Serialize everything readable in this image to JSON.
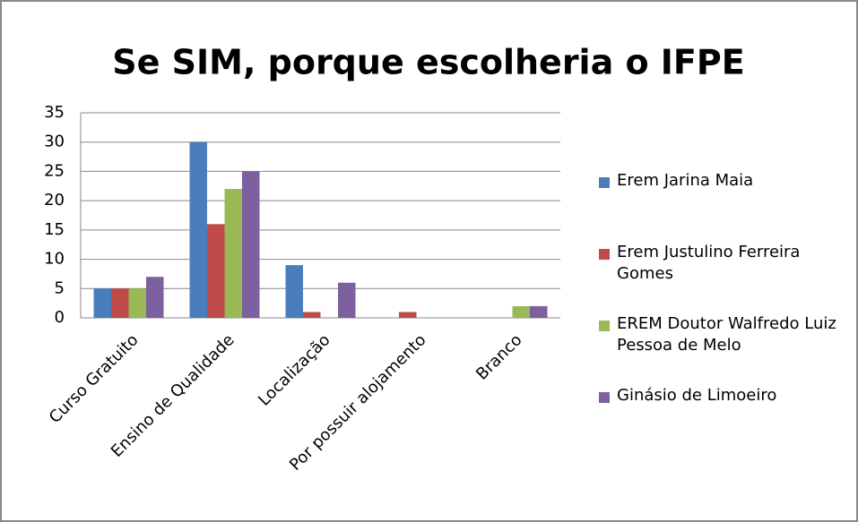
{
  "chart_data": {
    "type": "bar",
    "title": "Se SIM, porque escolheria o IFPE",
    "categories": [
      "Curso Gratuito",
      "Ensino de Qualidade",
      "Localização",
      "Por possuir alojamento",
      "Branco"
    ],
    "series": [
      {
        "name": "Erem Jarina Maia",
        "color": "#4a7ebb",
        "values": [
          5,
          30,
          9,
          0,
          0
        ]
      },
      {
        "name": "Erem Justulino Ferreira Gomes",
        "color": "#be4b48",
        "values": [
          5,
          16,
          1,
          1,
          0
        ]
      },
      {
        "name": "EREM Doutor Walfredo Luiz Pessoa de Melo",
        "color": "#98b954",
        "values": [
          5,
          22,
          0,
          0,
          2
        ]
      },
      {
        "name": "Ginásio de Limoeiro",
        "color": "#7d60a0",
        "values": [
          7,
          25,
          6,
          0,
          2
        ]
      }
    ],
    "ylim": [
      0,
      35
    ],
    "yticks": [
      0,
      5,
      10,
      15,
      20,
      25,
      30,
      35
    ],
    "grid": true,
    "legend": "right"
  }
}
